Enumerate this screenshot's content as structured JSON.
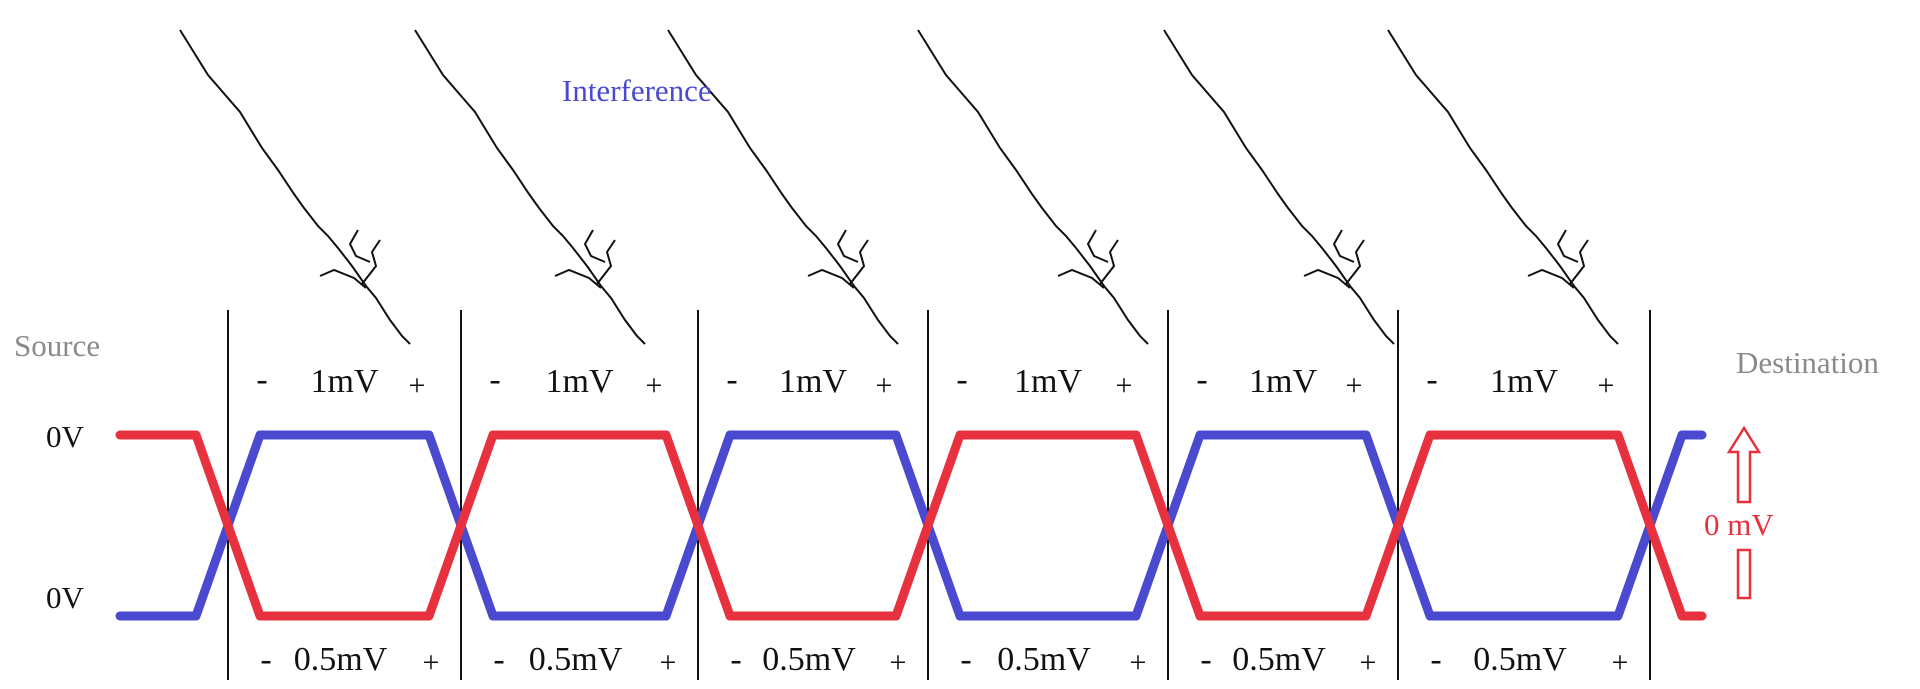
{
  "interference_label": "Interference",
  "source_label": "Source",
  "destination_label": "Destination",
  "top_level_label": "0V",
  "bottom_level_label": "0V",
  "diff_label": "0 mV",
  "segments": [
    {
      "top": {
        "minus": "-",
        "value": "1mV",
        "plus": "+"
      },
      "bottom": {
        "minus": "-",
        "value": "0.5mV",
        "plus": "+"
      }
    },
    {
      "top": {
        "minus": "-",
        "value": "1mV",
        "plus": "+"
      },
      "bottom": {
        "minus": "-",
        "value": "0.5mV",
        "plus": "+"
      }
    },
    {
      "top": {
        "minus": "-",
        "value": "1mV",
        "plus": "+"
      },
      "bottom": {
        "minus": "-",
        "value": "0.5mV",
        "plus": "+"
      }
    },
    {
      "top": {
        "minus": "-",
        "value": "1mV",
        "plus": "+"
      },
      "bottom": {
        "minus": "-",
        "value": "0.5mV",
        "plus": "+"
      }
    },
    {
      "top": {
        "minus": "-",
        "value": "1mV",
        "plus": "+"
      },
      "bottom": {
        "minus": "-",
        "value": "0.5mV",
        "plus": "+"
      }
    },
    {
      "top": {
        "minus": "-",
        "value": "1mV",
        "plus": "+"
      },
      "bottom": {
        "minus": "-",
        "value": "0.5mV",
        "plus": "+"
      }
    }
  ],
  "colors": {
    "wire_a": "#e8313f",
    "wire_b": "#4a4ad0",
    "interference_text": "#4a4ad0",
    "endpoint_text": "#8a8a8a",
    "diff_text": "#e8313f",
    "lightning": "#111111",
    "divider": "#111111"
  }
}
